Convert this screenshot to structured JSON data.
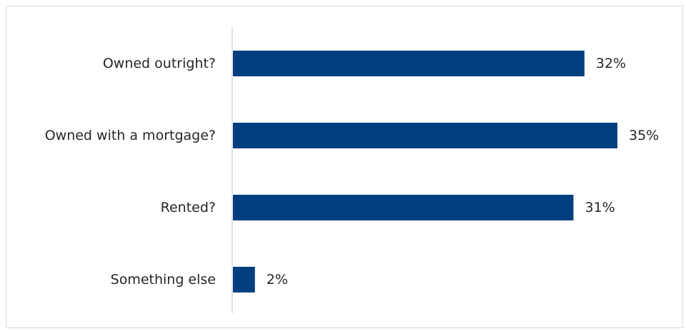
{
  "chart_data": {
    "type": "bar",
    "orientation": "horizontal",
    "categories": [
      "Owned outright?",
      "Owned with a  mortgage?",
      "Rented?",
      "Something else"
    ],
    "values": [
      32,
      35,
      31,
      2
    ],
    "value_labels": [
      "32%",
      "35%",
      "31%",
      "2%"
    ],
    "unit": "%",
    "xlim": [
      0,
      35
    ],
    "grid": false,
    "legend": "none",
    "bar_color": "#003f7f"
  }
}
